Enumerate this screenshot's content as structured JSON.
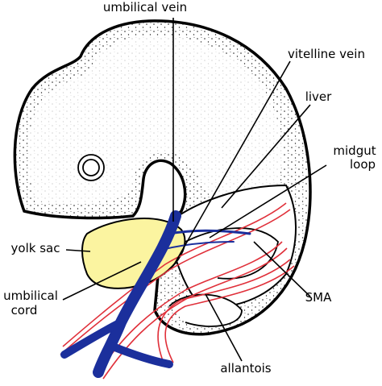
{
  "labels": {
    "umbilical_vein": "umbilical vein",
    "vitelline_vein": "vitelline vein",
    "liver": "liver",
    "midgut_loop": [
      "midgut",
      "loop"
    ],
    "yolk_sac": "yolk sac",
    "umbilical_cord": [
      "umbilical",
      "cord"
    ],
    "sma": "SMA",
    "allantois": "allantois"
  }
}
